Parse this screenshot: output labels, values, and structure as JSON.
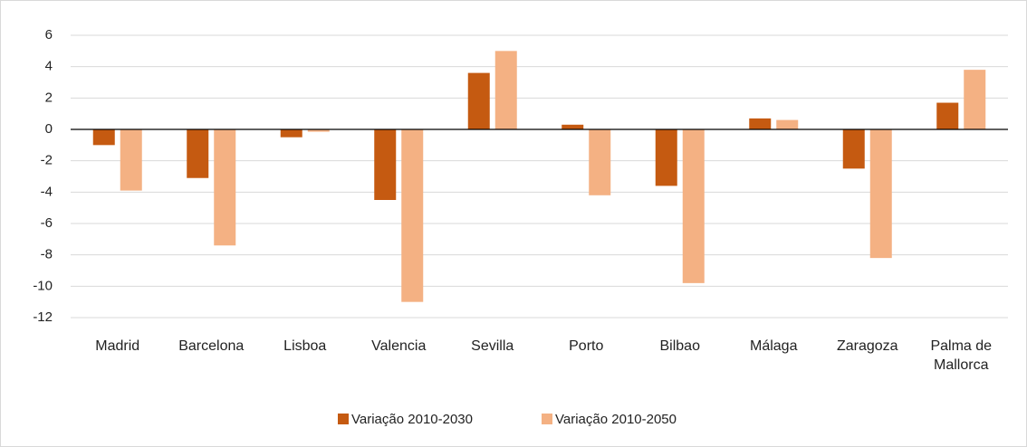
{
  "chart_data": {
    "type": "bar",
    "categories": [
      "Madrid",
      "Barcelona",
      "Lisboa",
      "Valencia",
      "Sevilla",
      "Porto",
      "Bilbao",
      "Málaga",
      "Zaragoza",
      "Palma de Mallorca"
    ],
    "series": [
      {
        "name": "Variação 2010-2030",
        "color": "#c55a11",
        "values": [
          -1.0,
          -3.1,
          -0.5,
          -4.5,
          3.6,
          0.3,
          -3.6,
          0.7,
          -2.5,
          1.7
        ]
      },
      {
        "name": "Variação 2010-2050",
        "color": "#f4b183",
        "values": [
          -3.9,
          -7.4,
          -0.15,
          -11.0,
          5.0,
          -4.2,
          -9.8,
          0.6,
          -8.2,
          3.8
        ]
      }
    ],
    "ylim": [
      -12,
      6
    ],
    "yticks": [
      -12,
      -10,
      -8,
      -6,
      -4,
      -2,
      0,
      2,
      4,
      6
    ],
    "grid": true,
    "legend": "bottom"
  }
}
